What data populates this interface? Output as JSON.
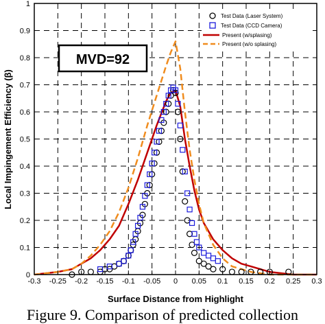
{
  "caption": "Figure 9. Comparison of predicted collection",
  "annotation": "MVD=92",
  "chart_data": {
    "type": "scatter",
    "xlabel": "Surface Distance from Highlight",
    "ylabel": "Local Impingement Efficiency (β)",
    "xlim": [
      -0.3,
      0.3
    ],
    "ylim": [
      0,
      1
    ],
    "x_ticks": [
      -0.3,
      -0.25,
      -0.2,
      -0.15,
      -0.1,
      -0.05,
      0,
      0.05,
      0.1,
      0.15,
      0.2,
      0.25,
      0.3
    ],
    "x_tick_labels": [
      "-0.3",
      "-0.25",
      "-0.2",
      "-0.15",
      "-0.1",
      "-0.05",
      "0",
      "0.05",
      "0.1",
      "0.15",
      "0.2",
      "0.25",
      "0.3"
    ],
    "y_ticks": [
      0,
      0.1,
      0.2,
      0.3,
      0.4,
      0.5,
      0.6,
      0.7,
      0.8,
      0.9,
      1
    ],
    "y_tick_labels": [
      "0",
      "0.1",
      "0.2",
      "0.3",
      "0.4",
      "0.5",
      "0.6",
      "0.7",
      "0.8",
      "0.9",
      "1"
    ],
    "grid": "dashed",
    "legend_position": "top-right",
    "series": [
      {
        "name": "Test Data (Laser System)",
        "style": "circle",
        "color": "#000000",
        "x": [
          -0.22,
          -0.2,
          -0.18,
          -0.16,
          -0.15,
          -0.14,
          -0.13,
          -0.12,
          -0.11,
          -0.1,
          -0.095,
          -0.09,
          -0.085,
          -0.08,
          -0.075,
          -0.07,
          -0.065,
          -0.06,
          -0.055,
          -0.05,
          -0.045,
          -0.04,
          -0.035,
          -0.03,
          -0.025,
          -0.02,
          -0.015,
          -0.01,
          -0.005,
          0,
          0.005,
          0.01,
          0.015,
          0.02,
          0.025,
          0.03,
          0.035,
          0.04,
          0.05,
          0.06,
          0.07,
          0.08,
          0.1,
          0.12,
          0.14,
          0.16,
          0.18,
          0.2,
          0.24
        ],
        "y": [
          0.0,
          0.01,
          0.01,
          0.01,
          0.02,
          0.02,
          0.03,
          0.04,
          0.05,
          0.07,
          0.09,
          0.11,
          0.13,
          0.16,
          0.19,
          0.22,
          0.26,
          0.3,
          0.33,
          0.37,
          0.41,
          0.45,
          0.49,
          0.53,
          0.56,
          0.6,
          0.63,
          0.66,
          0.68,
          0.67,
          0.6,
          0.5,
          0.38,
          0.27,
          0.2,
          0.15,
          0.11,
          0.08,
          0.05,
          0.04,
          0.03,
          0.02,
          0.02,
          0.01,
          0.01,
          0.01,
          0.01,
          0.01,
          0.01
        ]
      },
      {
        "name": "Test Data (CCD Camera)",
        "style": "square",
        "color": "#1a1adc",
        "x": [
          -0.16,
          -0.14,
          -0.12,
          -0.11,
          -0.1,
          -0.095,
          -0.09,
          -0.085,
          -0.08,
          -0.075,
          -0.07,
          -0.065,
          -0.06,
          -0.055,
          -0.05,
          -0.045,
          -0.04,
          -0.035,
          -0.03,
          -0.025,
          -0.02,
          -0.015,
          -0.01,
          -0.005,
          0,
          0.005,
          0.01,
          0.015,
          0.02,
          0.025,
          0.03,
          0.035,
          0.04,
          0.045,
          0.05,
          0.06,
          0.07,
          0.08,
          0.09
        ],
        "y": [
          0.02,
          0.03,
          0.04,
          0.05,
          0.07,
          0.09,
          0.12,
          0.15,
          0.18,
          0.21,
          0.25,
          0.29,
          0.33,
          0.37,
          0.41,
          0.45,
          0.49,
          0.53,
          0.57,
          0.6,
          0.63,
          0.66,
          0.68,
          0.69,
          0.68,
          0.63,
          0.55,
          0.46,
          0.38,
          0.3,
          0.24,
          0.19,
          0.15,
          0.12,
          0.1,
          0.08,
          0.07,
          0.06,
          0.05
        ]
      },
      {
        "name": "Present (w/splasing)",
        "style": "line",
        "color": "#c00000",
        "x": [
          -0.3,
          -0.25,
          -0.22,
          -0.2,
          -0.18,
          -0.16,
          -0.14,
          -0.12,
          -0.1,
          -0.08,
          -0.06,
          -0.04,
          -0.02,
          -0.01,
          0,
          0.01,
          0.02,
          0.03,
          0.04,
          0.05,
          0.06,
          0.08,
          0.1,
          0.12,
          0.14,
          0.16,
          0.18,
          0.2,
          0.25,
          0.3
        ],
        "y": [
          0.0,
          0.01,
          0.02,
          0.04,
          0.06,
          0.09,
          0.13,
          0.18,
          0.26,
          0.35,
          0.45,
          0.55,
          0.64,
          0.67,
          0.68,
          0.62,
          0.5,
          0.4,
          0.31,
          0.24,
          0.19,
          0.13,
          0.09,
          0.06,
          0.04,
          0.03,
          0.02,
          0.01,
          0.0,
          0.0
        ]
      },
      {
        "name": "Present (w/o splasing)",
        "style": "dashed-line",
        "color": "#f08c1e",
        "x": [
          -0.3,
          -0.25,
          -0.22,
          -0.2,
          -0.18,
          -0.16,
          -0.14,
          -0.12,
          -0.1,
          -0.08,
          -0.06,
          -0.04,
          -0.02,
          -0.01,
          0,
          0.01,
          0.02,
          0.03,
          0.04,
          0.05,
          0.06,
          0.08,
          0.1,
          0.12,
          0.14,
          0.16,
          0.2,
          0.25,
          0.3
        ],
        "y": [
          0.0,
          0.01,
          0.02,
          0.04,
          0.07,
          0.11,
          0.16,
          0.23,
          0.32,
          0.43,
          0.55,
          0.66,
          0.77,
          0.82,
          0.86,
          0.76,
          0.6,
          0.46,
          0.35,
          0.26,
          0.19,
          0.11,
          0.06,
          0.03,
          0.02,
          0.01,
          0.0,
          0.0,
          0.0
        ]
      }
    ]
  }
}
